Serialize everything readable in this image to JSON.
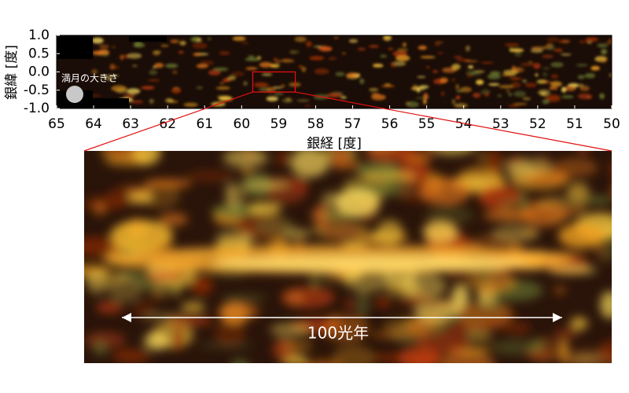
{
  "top_panel": {
    "y_label": "銀緯 [度]",
    "x_label": "銀経 [度]",
    "xlim": [
      65,
      50
    ],
    "ylim": [
      -1.0,
      1.0
    ],
    "xticks": [
      65,
      64,
      63,
      62,
      61,
      60,
      59,
      58,
      57,
      56,
      55,
      54,
      53,
      52,
      51,
      50
    ],
    "yticks": [
      {
        "value": 1,
        "label": "1.0"
      },
      0.5,
      {
        "value": 0,
        "label": "0.0"
      },
      -0.5,
      {
        "value": -1,
        "label": "-1.0"
      }
    ],
    "moon_label": "満月の大きさ",
    "region_x": [
      59.7,
      58.55
    ],
    "region_y": [
      0.0,
      -0.55
    ]
  },
  "zoom_panel": {
    "scale_label": "100光年"
  }
}
